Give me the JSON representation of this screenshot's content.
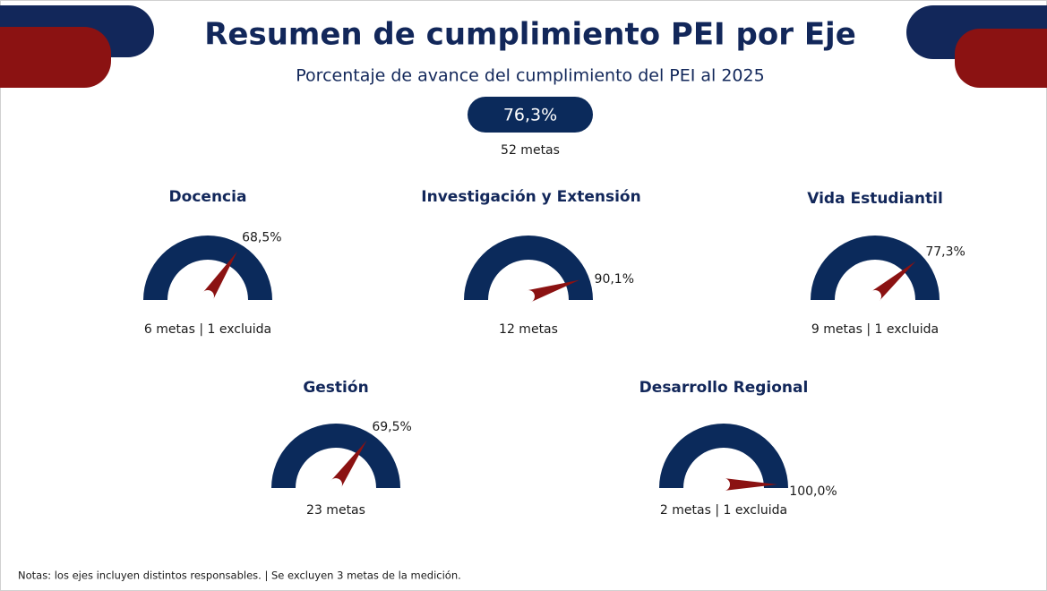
{
  "title": "Resumen de cumplimiento PEI por Eje",
  "subtitle": "Porcentaje de avance del cumplimiento del PEI al 2025",
  "total": {
    "label": "76,3%",
    "caption": "52 metas"
  },
  "note": "Notas: los ejes incluyen distintos responsables. | Se excluyen 3 metas de la medición.",
  "chart_data": [
    {
      "type": "gauge",
      "title": "Docencia",
      "values": [
        68.5
      ],
      "value_labels": [
        "68,5%"
      ],
      "caption": "6 metas | 1 excluida",
      "ylim": [
        0,
        100
      ],
      "color": "#0b2a5b",
      "needle_color": "#8b1212"
    },
    {
      "type": "gauge",
      "title": "Investigación y Extensión",
      "values": [
        90.1
      ],
      "value_labels": [
        "90,1%"
      ],
      "caption": "12 metas",
      "ylim": [
        0,
        100
      ],
      "color": "#0b2a5b",
      "needle_color": "#8b1212"
    },
    {
      "type": "gauge",
      "title": "Vida Estudiantil",
      "values": [
        77.3
      ],
      "value_labels": [
        "77,3%"
      ],
      "caption": "9 metas | 1 excluida",
      "ylim": [
        0,
        100
      ],
      "color": "#0b2a5b",
      "needle_color": "#8b1212"
    },
    {
      "type": "gauge",
      "title": "Gestión",
      "values": [
        69.5
      ],
      "value_labels": [
        "69,5%"
      ],
      "caption": "23 metas",
      "ylim": [
        0,
        100
      ],
      "color": "#0b2a5b",
      "needle_color": "#8b1212"
    },
    {
      "type": "gauge",
      "title": "Desarrollo Regional",
      "values": [
        100.0
      ],
      "value_labels": [
        "100,0%"
      ],
      "caption": "2 metas | 1 excluida",
      "ylim": [
        0,
        100
      ],
      "color": "#0b2a5b",
      "needle_color": "#8b1212"
    }
  ]
}
